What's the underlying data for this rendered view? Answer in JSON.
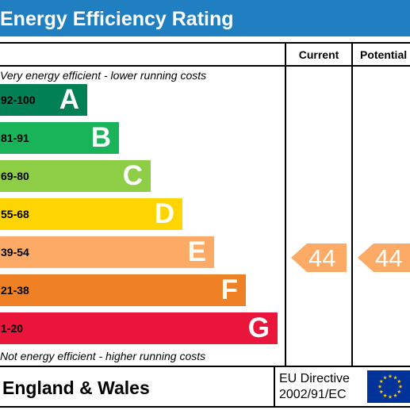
{
  "header": {
    "title": "Energy Efficiency Rating"
  },
  "columns": {
    "current": "Current",
    "potential": "Potential"
  },
  "captions": {
    "top": "Very energy efficient - lower running costs",
    "bottom": "Not energy efficient - higher running costs"
  },
  "bands": [
    {
      "range": "92-100",
      "letter": "A",
      "color": "#008054"
    },
    {
      "range": "81-91",
      "letter": "B",
      "color": "#19b459"
    },
    {
      "range": "69-80",
      "letter": "C",
      "color": "#8dce46"
    },
    {
      "range": "55-68",
      "letter": "D",
      "color": "#ffd500"
    },
    {
      "range": "39-54",
      "letter": "E",
      "color": "#fcaa65"
    },
    {
      "range": "21-38",
      "letter": "F",
      "color": "#ef8023"
    },
    {
      "range": "1-20",
      "letter": "G",
      "color": "#e9153b"
    }
  ],
  "ratings": {
    "current": {
      "value": "44",
      "band": "E"
    },
    "potential": {
      "value": "44",
      "band": "E"
    },
    "arrow_color": "#fcaa65"
  },
  "footer": {
    "country": "England & Wales",
    "directive_line1": "EU Directive",
    "directive_line2": "2002/91/EC"
  },
  "flag": {
    "icon": "eu-flag-icon",
    "background": "#003399",
    "stars": "#ffcc00"
  },
  "accent": "#1f7fc1"
}
